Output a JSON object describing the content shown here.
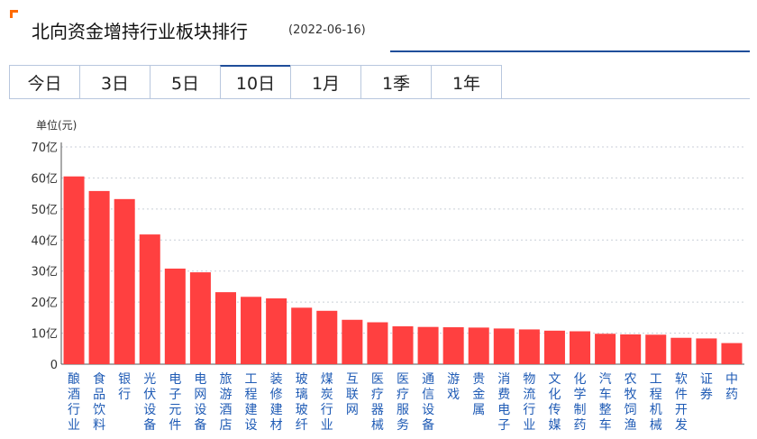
{
  "header": {
    "title": "北向资金增持行业板块排行",
    "date": "(2022-06-16)"
  },
  "tabs": [
    {
      "label": "今日"
    },
    {
      "label": "3日"
    },
    {
      "label": "5日"
    },
    {
      "label": "10日"
    },
    {
      "label": "1月"
    },
    {
      "label": "1季"
    },
    {
      "label": "1年"
    }
  ],
  "active_tab": "10日",
  "colors": {
    "accent": "#1f4e9a",
    "bar": "#ff4040",
    "corner": "#ff6a00",
    "label": "#1f5bb5"
  },
  "chart_data": {
    "type": "bar",
    "title": "",
    "xlabel": "",
    "ylabel": "单位(元)",
    "ylim": [
      0,
      70
    ],
    "yticks": [
      "0",
      "10亿",
      "20亿",
      "30亿",
      "40亿",
      "50亿",
      "60亿",
      "70亿"
    ],
    "grid": true,
    "categories": [
      "酿酒行业",
      "食品饮料",
      "银行",
      "光伏设备",
      "电子元件",
      "电网设备",
      "旅游酒店",
      "工程建设",
      "装修建材",
      "玻璃玻纤",
      "煤炭行业",
      "互联网",
      "医疗器械",
      "医疗服务",
      "通信设备",
      "游戏",
      "贵金属",
      "消费电子",
      "物流行业",
      "文化传媒",
      "化学制药",
      "汽车整车",
      "农牧饲渔",
      "工程机械",
      "软件开发",
      "证券",
      "中药"
    ],
    "values": [
      60.5,
      55.8,
      53.2,
      41.8,
      30.8,
      29.6,
      23.2,
      21.7,
      21.2,
      18.2,
      17.2,
      14.3,
      13.5,
      12.2,
      12.0,
      11.9,
      11.8,
      11.5,
      11.2,
      10.8,
      10.6,
      9.8,
      9.6,
      9.5,
      8.5,
      8.3,
      6.8
    ]
  }
}
